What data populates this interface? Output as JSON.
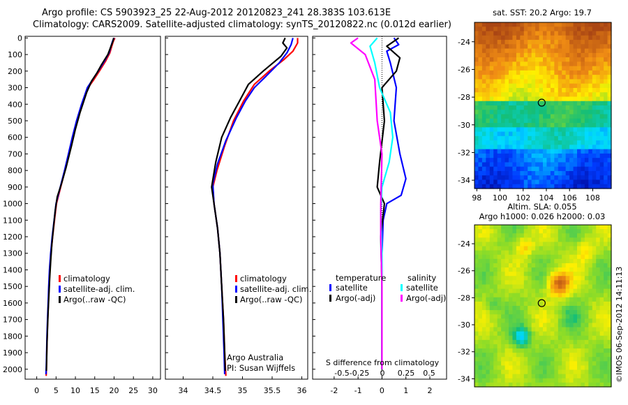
{
  "header": {
    "line1": "Argo profile: CS 5903923_25 22-Aug-2012 20120823_241 28.383S 103.613E",
    "line2": "Climatology: CARS2009. Satellite-adjusted climatology: synTS_20120822.nc (0.012d earlier)"
  },
  "colors": {
    "climatology": "#ff0000",
    "satellite": "#0000ff",
    "argo": "#000000",
    "sat_salinity": "#00ffff",
    "argo_salinity": "#ff00ff"
  },
  "chart_data": [
    {
      "id": "temperature",
      "type": "line",
      "x_ticks": [
        "0",
        "5",
        "10",
        "15",
        "20",
        "25",
        "30"
      ],
      "y_ticks": [
        "0",
        "100",
        "200",
        "300",
        "400",
        "500",
        "600",
        "700",
        "800",
        "900",
        "1000",
        "1100",
        "1200",
        "1300",
        "1400",
        "1500",
        "1600",
        "1700",
        "1800",
        "1900",
        "2000"
      ],
      "xlim": [
        -3,
        32
      ],
      "ylim": [
        2060,
        -10
      ],
      "legend": [
        "climatology",
        "satellite-adj. clim.",
        "Argo(..raw -QC)"
      ],
      "series": [
        {
          "name": "climatology",
          "color": "#ff0000",
          "points": [
            [
              20.2,
              0
            ],
            [
              19.8,
              20
            ],
            [
              19.4,
              50
            ],
            [
              18.9,
              90
            ],
            [
              17.8,
              140
            ],
            [
              16.2,
              200
            ],
            [
              14.8,
              250
            ],
            [
              13.3,
              300
            ],
            [
              11.8,
              400
            ],
            [
              10.5,
              500
            ],
            [
              9.4,
              600
            ],
            [
              8.4,
              700
            ],
            [
              7.3,
              800
            ],
            [
              6.2,
              900
            ],
            [
              5.1,
              1000
            ],
            [
              4.6,
              1100
            ],
            [
              4.1,
              1200
            ],
            [
              3.7,
              1300
            ],
            [
              3.4,
              1400
            ],
            [
              3.2,
              1500
            ],
            [
              3.0,
              1600
            ],
            [
              2.85,
              1700
            ],
            [
              2.7,
              1800
            ],
            [
              2.6,
              1900
            ],
            [
              2.5,
              2000
            ],
            [
              2.45,
              2040
            ]
          ]
        },
        {
          "name": "satellite-adj. clim.",
          "color": "#0000ff",
          "points": [
            [
              20.0,
              0
            ],
            [
              19.6,
              20
            ],
            [
              19.2,
              50
            ],
            [
              18.7,
              90
            ],
            [
              17.5,
              140
            ],
            [
              15.9,
              200
            ],
            [
              14.5,
              250
            ],
            [
              13.1,
              300
            ],
            [
              11.6,
              400
            ],
            [
              10.3,
              500
            ],
            [
              9.2,
              600
            ],
            [
              8.2,
              700
            ],
            [
              7.2,
              800
            ],
            [
              6.1,
              900
            ],
            [
              5.0,
              1000
            ],
            [
              4.5,
              1100
            ],
            [
              4.0,
              1200
            ],
            [
              3.6,
              1300
            ],
            [
              3.3,
              1400
            ],
            [
              3.1,
              1500
            ],
            [
              2.95,
              1600
            ],
            [
              2.8,
              1700
            ],
            [
              2.65,
              1800
            ],
            [
              2.55,
              1900
            ],
            [
              2.45,
              2000
            ],
            [
              2.4,
              2030
            ]
          ]
        },
        {
          "name": "Argo(..raw -QC)",
          "color": "#000000",
          "points": [
            [
              19.9,
              0
            ],
            [
              19.7,
              20
            ],
            [
              19.2,
              50
            ],
            [
              18.4,
              100
            ],
            [
              16.8,
              160
            ],
            [
              15.6,
              210
            ],
            [
              14.2,
              260
            ],
            [
              12.9,
              330
            ],
            [
              11.2,
              450
            ],
            [
              10.0,
              550
            ],
            [
              9.0,
              650
            ],
            [
              7.6,
              780
            ],
            [
              6.4,
              880
            ],
            [
              5.3,
              960
            ],
            [
              4.8,
              1040
            ],
            [
              4.3,
              1150
            ],
            [
              3.9,
              1250
            ],
            [
              3.6,
              1350
            ],
            [
              3.35,
              1450
            ],
            [
              3.15,
              1550
            ],
            [
              2.95,
              1650
            ],
            [
              2.8,
              1750
            ],
            [
              2.65,
              1850
            ],
            [
              2.55,
              1950
            ],
            [
              2.5,
              2010
            ]
          ]
        }
      ]
    },
    {
      "id": "salinity",
      "type": "line",
      "x_ticks": [
        "34",
        "34.5",
        "35",
        "35.5",
        "36"
      ],
      "xlim": [
        33.7,
        36.1
      ],
      "ylim": [
        2060,
        -10
      ],
      "legend": [
        "climatology",
        "satellite-adj. clim.",
        "Argo(..raw -QC)"
      ],
      "annotation": [
        "Argo Australia",
        "PI: Susan Wijffels"
      ],
      "series": [
        {
          "name": "climatology",
          "color": "#ff0000",
          "points": [
            [
              35.93,
              0
            ],
            [
              35.93,
              30
            ],
            [
              35.85,
              80
            ],
            [
              35.7,
              130
            ],
            [
              35.45,
              200
            ],
            [
              35.2,
              280
            ],
            [
              35.02,
              380
            ],
            [
              34.85,
              500
            ],
            [
              34.7,
              650
            ],
            [
              34.57,
              800
            ],
            [
              34.5,
              900
            ],
            [
              34.52,
              1000
            ],
            [
              34.58,
              1150
            ],
            [
              34.62,
              1300
            ],
            [
              34.65,
              1500
            ],
            [
              34.68,
              1700
            ],
            [
              34.7,
              1900
            ],
            [
              34.72,
              2040
            ]
          ]
        },
        {
          "name": "satellite-adj. clim.",
          "color": "#0000ff",
          "points": [
            [
              35.85,
              0
            ],
            [
              35.82,
              40
            ],
            [
              35.75,
              90
            ],
            [
              35.62,
              150
            ],
            [
              35.4,
              230
            ],
            [
              35.2,
              300
            ],
            [
              35.05,
              380
            ],
            [
              34.9,
              480
            ],
            [
              34.72,
              620
            ],
            [
              34.58,
              760
            ],
            [
              34.5,
              880
            ],
            [
              34.52,
              1000
            ],
            [
              34.58,
              1150
            ],
            [
              34.62,
              1300
            ],
            [
              34.65,
              1500
            ],
            [
              34.67,
              1700
            ],
            [
              34.69,
              1900
            ],
            [
              34.7,
              2030
            ]
          ]
        },
        {
          "name": "Argo(..raw -QC)",
          "color": "#000000",
          "points": [
            [
              35.72,
              0
            ],
            [
              35.68,
              30
            ],
            [
              35.75,
              60
            ],
            [
              35.65,
              110
            ],
            [
              35.35,
              200
            ],
            [
              35.1,
              280
            ],
            [
              34.95,
              380
            ],
            [
              34.8,
              480
            ],
            [
              34.65,
              600
            ],
            [
              34.55,
              750
            ],
            [
              34.48,
              900
            ],
            [
              34.52,
              1000
            ],
            [
              34.58,
              1150
            ],
            [
              34.62,
              1300
            ],
            [
              34.65,
              1500
            ],
            [
              34.68,
              1700
            ],
            [
              34.7,
              1900
            ],
            [
              34.71,
              2010
            ]
          ]
        }
      ]
    },
    {
      "id": "difference",
      "type": "line",
      "x_ticks": [
        "-2",
        "-1",
        "0",
        "1",
        "2"
      ],
      "x_ticks_s": [
        "-0.5",
        "-0.25",
        "0",
        "0.25",
        "0.5"
      ],
      "xlabel": "S difference from climatology",
      "xlim": [
        -2.9,
        2.7
      ],
      "ylim": [
        2060,
        -10
      ],
      "legend_t_title": "temperature",
      "legend_s_title": "salinity",
      "legend_t": [
        "satellite",
        "Argo(-adj)"
      ],
      "legend_s": [
        "satellite",
        "Argo(-adj)"
      ],
      "series": [
        {
          "name": "satellite",
          "color": "#0000ff",
          "points": [
            [
              0.5,
              0
            ],
            [
              0.7,
              40
            ],
            [
              0.2,
              80
            ],
            [
              0.35,
              150
            ],
            [
              0.6,
              300
            ],
            [
              0.5,
              500
            ],
            [
              0.75,
              700
            ],
            [
              1.0,
              850
            ],
            [
              0.8,
              950
            ],
            [
              0.2,
              1000
            ],
            [
              0.05,
              1100
            ],
            [
              0.0,
              1300
            ],
            [
              0.0,
              2000
            ]
          ]
        },
        {
          "name": "Argo(-adj)",
          "color": "#000000",
          "points": [
            [
              0.7,
              0
            ],
            [
              0.2,
              50
            ],
            [
              0.75,
              120
            ],
            [
              0.6,
              200
            ],
            [
              0.0,
              300
            ],
            [
              0.1,
              500
            ],
            [
              -0.1,
              750
            ],
            [
              -0.2,
              900
            ],
            [
              0.1,
              1000
            ],
            [
              -0.05,
              1200
            ],
            [
              0.0,
              1500
            ],
            [
              0.0,
              2000
            ]
          ]
        },
        {
          "name": "satellite",
          "color": "#00ffff",
          "points": [
            [
              -0.2,
              0
            ],
            [
              -0.5,
              50
            ],
            [
              -0.3,
              150
            ],
            [
              -0.1,
              300
            ],
            [
              0.35,
              450
            ],
            [
              0.45,
              600
            ],
            [
              0.3,
              750
            ],
            [
              0.0,
              900
            ],
            [
              -0.05,
              1050
            ],
            [
              0.0,
              1300
            ],
            [
              0.0,
              2000
            ]
          ]
        },
        {
          "name": "Argo(-adj)",
          "color": "#ff00ff",
          "points": [
            [
              -1.0,
              0
            ],
            [
              -1.3,
              30
            ],
            [
              -0.7,
              100
            ],
            [
              -0.3,
              250
            ],
            [
              -0.2,
              500
            ],
            [
              0.0,
              700
            ],
            [
              -0.05,
              1000
            ],
            [
              -0.05,
              1200
            ],
            [
              0.0,
              1500
            ],
            [
              0.0,
              2000
            ]
          ]
        }
      ]
    },
    {
      "id": "sst_map",
      "type": "heatmap",
      "title": "sat. SST: 20.2  Argo: 19.7",
      "x_ticks": [
        "98",
        "100",
        "102",
        "104",
        "106",
        "108"
      ],
      "y_ticks": [
        "-24",
        "-26",
        "-28",
        "-30",
        "-32",
        "-34"
      ],
      "xlim": [
        97.8,
        109.6
      ],
      "ylim": [
        -34.6,
        -22.6
      ],
      "marker": [
        103.6,
        -28.4
      ],
      "caption1": "Altim. SLA: 0.055",
      "caption2": "Argo h1000: 0.026 h2000: 0.03"
    },
    {
      "id": "sla_map",
      "type": "heatmap",
      "y_ticks": [
        "-24",
        "-26",
        "-28",
        "-30",
        "-32",
        "-34"
      ],
      "xlim": [
        97.8,
        109.6
      ],
      "ylim": [
        -34.6,
        -22.6
      ],
      "marker": [
        103.6,
        -28.4
      ]
    }
  ],
  "footer": {
    "stamp": "©IMOS 06-Sep-2012 14:11:13"
  }
}
